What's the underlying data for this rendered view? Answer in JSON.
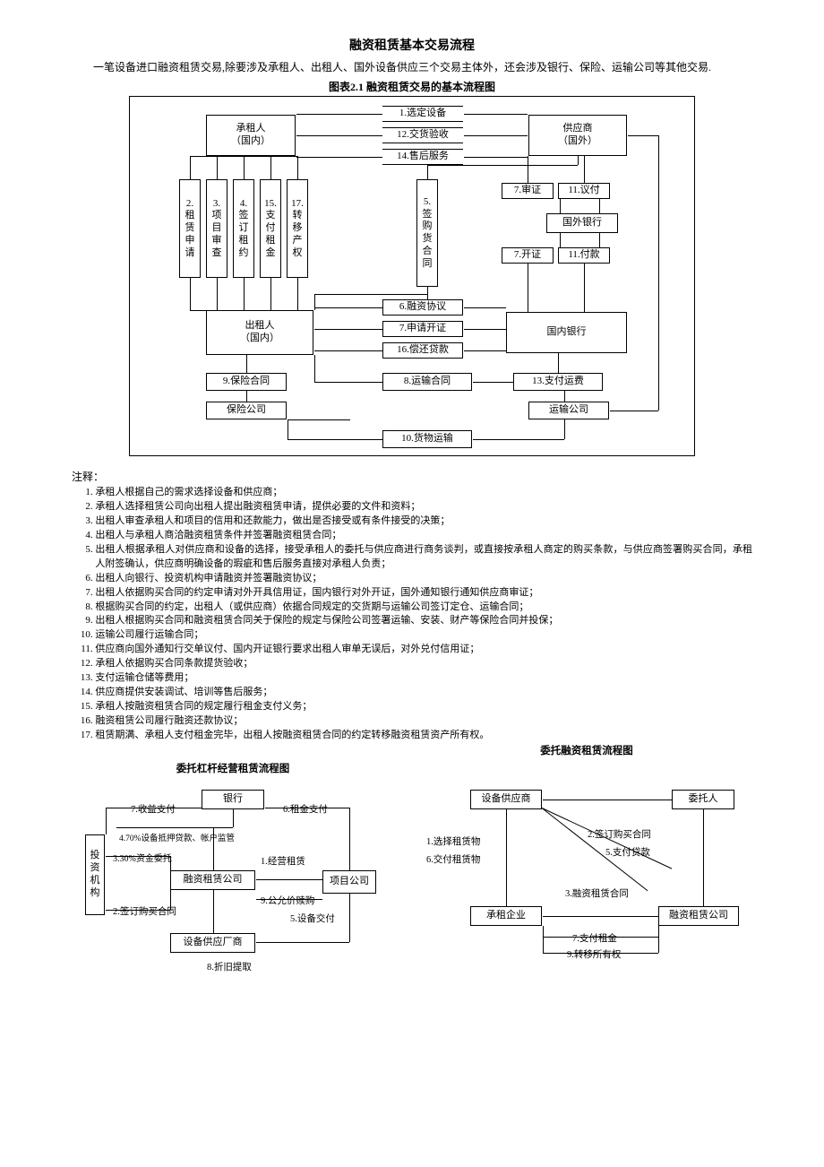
{
  "doc": {
    "title": "融资租赁基本交易流程",
    "intro": "一笔设备进口融资租赁交易,除要涉及承租人、出租人、国外设备供应三个交易主体外，还会涉及银行、保险、运输公司等其他交易.",
    "fig_caption": "图表2.1  融资租赁交易的基本流程图"
  },
  "flow1": {
    "boxes": {
      "lessee": "承租人\n（国内）",
      "supplier": "供应商\n（国外）",
      "lessor": "出租人\n（国内）",
      "dom_bank": "国内银行",
      "for_bank": "国外银行",
      "insurer": "保险公司",
      "shipper": "运输公司"
    },
    "edges": {
      "e1": "1.选定设备",
      "e12": "12.交货验收",
      "e14": "14.售后服务",
      "e2": "2.\n租\n赁\n申\n请",
      "e3": "3.\n项\n目\n审\n查",
      "e4": "4.\n签\n订\n租\n约",
      "e15": "15.\n支\n付\n租\n金",
      "e17": "17.\n转\n移\n产\n权",
      "e5": "5.\n签\n购\n货\n合\n同",
      "e7a": "7.审证",
      "e11a": "11.议付",
      "e7b": "7.开证",
      "e11b": "11.付款",
      "e6": "6.融资协议",
      "e7c": "7.申请开证",
      "e16": "16.偿还贷款",
      "e9": "9.保险合同",
      "e8": "8.运输合同",
      "e13": "13.支付运费",
      "e10": "10.货物运输"
    }
  },
  "notes": {
    "head": "注释：",
    "items": [
      "承租人根据自己的需求选择设备和供应商；",
      "承租人选择租赁公司向出租人提出融资租赁申请，提供必要的文件和资料；",
      "出租人审查承租人和项目的信用和还款能力，做出是否接受或有条件接受的决策；",
      "出租人与承租人商洽融资租赁条件并签署融资租赁合同；",
      "出租人根据承租人对供应商和设备的选择，接受承租人的委托与供应商进行商务谈判，或直接按承租人商定的购买条款，与供应商签署购买合同，承租人附签确认，供应商明确设备的瑕疵和售后服务直接对承租人负责；",
      "出租人向银行、投资机构申请融资并签署融资协议；",
      "出租人依据购买合同的约定申请对外开具信用证，国内银行对外开证，国外通知银行通知供应商审证；",
      "根据购买合同的约定，出租人（或供应商）依据合同规定的交货期与运输公司签订定仓、运输合同；",
      "出租人根据购买合同和融资租赁合同关于保险的规定与保险公司签署运输、安装、财产等保险合同并投保；",
      "运输公司履行运输合同；",
      "供应商向国外通知行交单议付、国内开证银行要求出租人审单无误后，对外兑付信用证；",
      "承租人依据购买合同条款提货验收；",
      "支付运输仓储等费用；",
      "供应商提供安装调试、培训等售后服务；",
      "承租人按融资租赁合同的规定履行租金支付义务；",
      "融资租赁公司履行融资还款协议；",
      "租赁期满、承租人支付租金完毕，出租人按融资租赁合同的约定转移融资租赁资产所有权。"
    ]
  },
  "flow2": {
    "caption": "委托杠杆经营租赁流程图",
    "nodes": {
      "bank": "银行",
      "invest": "投\n资\n机\n构",
      "leaseco": "融资租赁公司",
      "project": "项目公司",
      "equip": "设备供应厂商"
    },
    "edges": {
      "e7": "7.收益支付",
      "e6": "6.租金支付",
      "e470": "4.70%设备抵押贷款、帐户监管",
      "e330": "3.30%资金委托",
      "e1": "1.经营租赁",
      "e2": "2.签订购买合同",
      "e9": "9.公允价赎购",
      "e5": "5.设备交付",
      "e8": "8.折旧提取"
    }
  },
  "flow3": {
    "caption": "委托融资租赁流程图",
    "nodes": {
      "supplier": "设备供应商",
      "trustor": "委托人",
      "lessee": "承租企业",
      "leaseco": "融资租赁公司"
    },
    "edges": {
      "e1": "1.选择租赁物",
      "e6": "6.交付租赁物",
      "e2": "2.签订购买合同",
      "e5": "5.支付贷款",
      "e3": "3.融资租赁合同",
      "e7": "7.支付租金",
      "e9": "9.转移所有权"
    }
  }
}
